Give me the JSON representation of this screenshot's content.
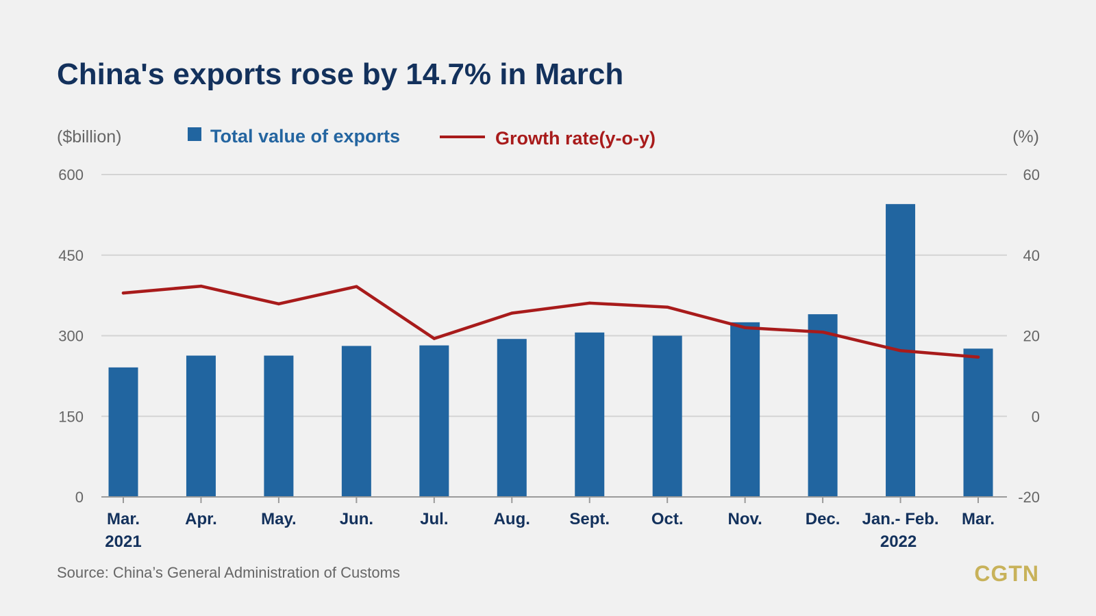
{
  "colors": {
    "bar": "#2165a0",
    "line": "#a81b1b",
    "title": "#13315c",
    "grid": "#d4d4d4",
    "logo": "#c8b25a"
  },
  "chart_data": {
    "type": "bar",
    "title": "China's exports rose by 14.7% in March",
    "ylabel_left": "($billion)",
    "ylabel_right": "(%)",
    "ylim_left": [
      0,
      600
    ],
    "ylim_right": [
      -20,
      60
    ],
    "yticks_left": [
      "600",
      "450",
      "300",
      "150",
      "0"
    ],
    "yticks_right": [
      "60",
      "40",
      "20",
      "0",
      "-20"
    ],
    "grid": true,
    "legend_placement": "top-left",
    "categories": [
      "Mar.",
      "Apr.",
      "May.",
      "Jun.",
      "Jul.",
      "Aug.",
      "Sept.",
      "Oct.",
      "Nov.",
      "Dec.",
      "Jan.- Feb.",
      "Mar."
    ],
    "category_sublabels": [
      "2021",
      "",
      "",
      "",
      "",
      "",
      "",
      "",
      "",
      "",
      "2022",
      ""
    ],
    "series": [
      {
        "name": "Total value of exports",
        "type": "bar",
        "axis": "left",
        "values": [
          241,
          263,
          263,
          281,
          282,
          294,
          306,
          300,
          325,
          340,
          545,
          276
        ]
      },
      {
        "name": "Growth rate(y-o-y)",
        "type": "line",
        "axis": "right",
        "values": [
          30.6,
          32.3,
          27.9,
          32.2,
          19.3,
          25.6,
          28.1,
          27.1,
          22,
          20.9,
          16.3,
          14.7
        ]
      }
    ],
    "source": "Source: China’s General Administration of Customs"
  },
  "branding": {
    "logo": "CGTN"
  }
}
